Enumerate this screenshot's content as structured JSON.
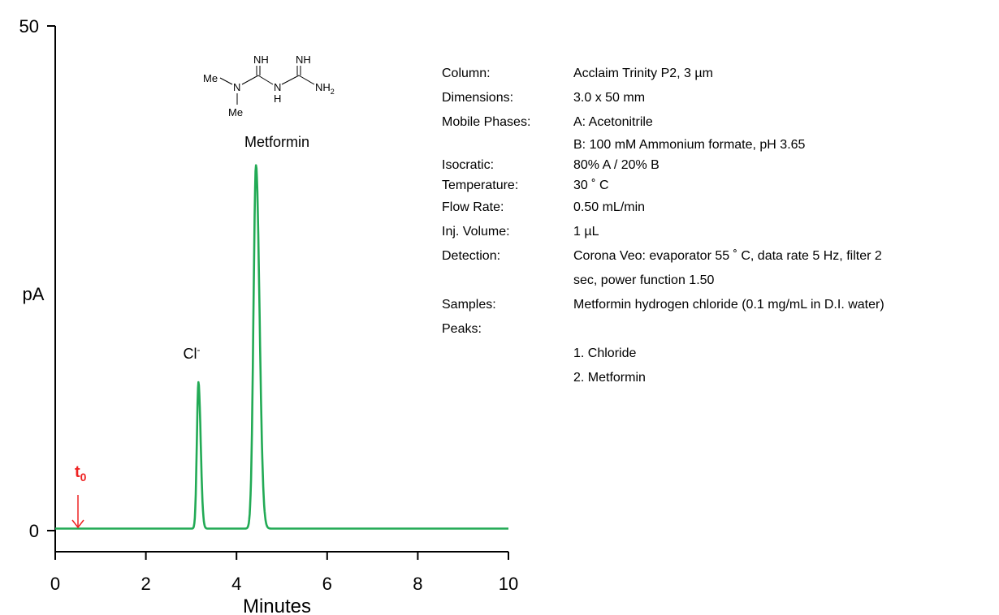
{
  "chart_data": {
    "type": "line",
    "title": "",
    "xlabel": "Minutes",
    "ylabel": "pA",
    "xlim": [
      0,
      10
    ],
    "ylim": [
      0,
      50
    ],
    "xticks": [
      0,
      2,
      4,
      6,
      8,
      10
    ],
    "yticks": [
      0,
      50
    ],
    "grid": false,
    "series": [
      {
        "color": "#22aa55",
        "baseline": 0.2,
        "peaks": [
          {
            "x": 3.16,
            "height": 14.5,
            "width": 0.035
          },
          {
            "x": 4.43,
            "height": 36.0,
            "width": 0.055
          }
        ]
      }
    ],
    "annotations": {
      "chloride_label": "Cl",
      "chloride_sup": "-",
      "metformin_label": "Metformin",
      "t0_label": "t",
      "t0_sub": "0",
      "t0_x": 0.5,
      "t0_color": "#ee2222"
    },
    "structure_labels": {
      "nh_left": "NH",
      "nh_right": "NH",
      "me_top": "Me",
      "n": "N",
      "me_bottom": "Me",
      "h_bridge": "H",
      "n_bridge": "N",
      "nh2": "NH",
      "nh2_sub": "2"
    }
  },
  "conditions": [
    {
      "label": "Column:",
      "value": "Acclaim Trinity P2, 3 µm"
    },
    {
      "label": "Dimensions:",
      "value": "3.0 x 50 mm"
    },
    {
      "label": "Mobile Phases:",
      "value": "A: Acetonitrile"
    },
    {
      "label": "",
      "value": "B: 100 mM Ammonium formate, pH 3.65"
    },
    {
      "label": "Isocratic:",
      "value": "80% A / 20% B"
    },
    {
      "label": "Temperature:",
      "value": "30 ˚ C"
    },
    {
      "label": "Flow Rate:",
      "value": "0.50 mL/min"
    },
    {
      "label": "Inj. Volume:",
      "value": "1 µL"
    },
    {
      "label": "Detection:",
      "value": "Corona Veo: evaporator 55 ˚ C, data rate 5 Hz, filter 2"
    },
    {
      "label": "",
      "value": "sec, power function 1.50"
    },
    {
      "label": "Samples:",
      "value": "Metformin hydrogen chloride (0.1 mg/mL in D.I. water)"
    },
    {
      "label": "Peaks:",
      "value": ""
    },
    {
      "label": "",
      "value": "1. Chloride"
    },
    {
      "label": "",
      "value": "2. Metformin"
    }
  ]
}
